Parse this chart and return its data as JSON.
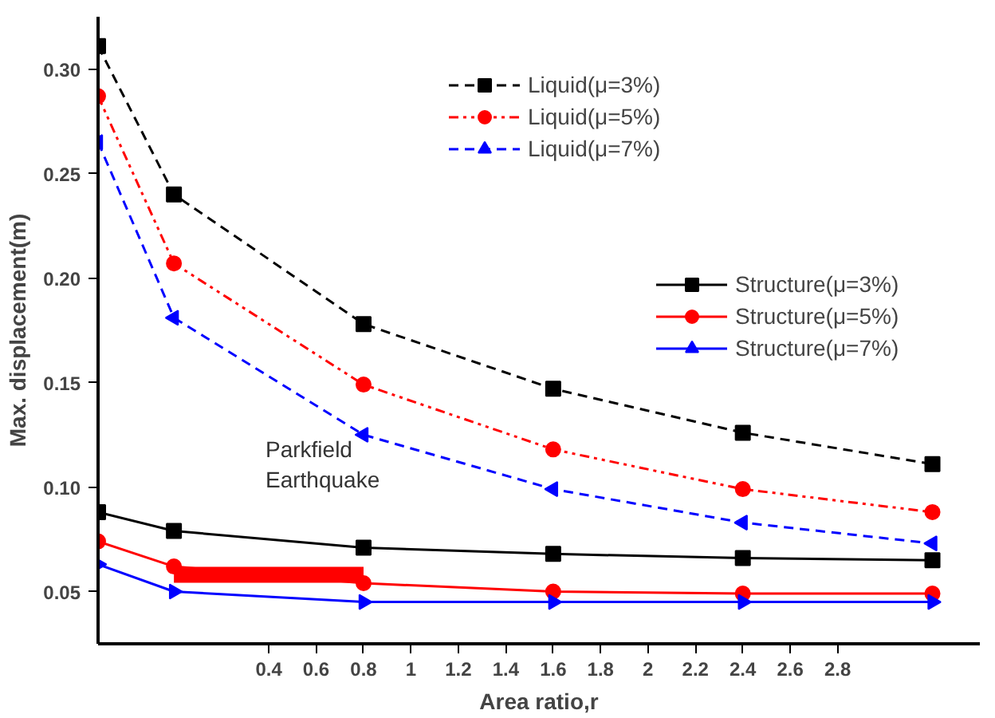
{
  "chart_data": {
    "type": "line",
    "xlabel": "Area ratio,r",
    "ylabel": "Max. displacement(m)",
    "xlim": [
      -0.32,
      3.4
    ],
    "ylim": [
      0.025,
      0.325
    ],
    "xticks": [
      0.4,
      0.6,
      0.8,
      1.0,
      1.2,
      1.4,
      1.6,
      1.8,
      2.0,
      2.2,
      2.4,
      2.6,
      2.8
    ],
    "yticks": [
      {
        "value": 0.05,
        "label": "0.05"
      },
      {
        "value": 0.1,
        "label": "0.10"
      },
      {
        "value": 0.15,
        "label": "0.15"
      },
      {
        "value": 0.2,
        "label": "0.20"
      },
      {
        "value": 0.25,
        "label": "0.25"
      },
      {
        "value": 0.3,
        "label": "0.30"
      }
    ],
    "grid": false,
    "legend": "top right",
    "annotations": [
      "Parkfield\nEarthquake"
    ],
    "x": [
      -0.32,
      0,
      0.8,
      1.6,
      2.4,
      3.2
    ],
    "series": [
      {
        "name": "Liquid(μ=3%)",
        "color": "#000000",
        "line_style": "dashed",
        "marker": "square",
        "values": [
          0.311,
          0.24,
          0.178,
          0.147,
          0.126,
          0.111
        ]
      },
      {
        "name": "Liquid(μ=5%)",
        "color": "#ff0000",
        "line_style": "dotted",
        "marker": "circle",
        "values": [
          0.287,
          0.207,
          0.149,
          0.118,
          0.099,
          0.088
        ]
      },
      {
        "name": "Liquid(μ=7%)",
        "color": "#0000ff",
        "line_style": "dashed",
        "marker": "triangle",
        "values": [
          0.265,
          0.181,
          0.125,
          0.099,
          0.083,
          0.073
        ]
      },
      {
        "name": "Structure(μ=3%)",
        "color": "#000000",
        "line_style": "solid",
        "marker": "square",
        "values": [
          0.088,
          0.079,
          0.071,
          0.068,
          0.066,
          0.065
        ]
      },
      {
        "name": "Structure(μ=5%)",
        "color": "#ff0000",
        "line_style": "solid",
        "marker": "circle",
        "values": [
          0.074,
          0.062,
          0.054,
          0.05,
          0.049,
          0.049
        ]
      },
      {
        "name": "Structure(μ=7%)",
        "color": "#0000ff",
        "line_style": "solid",
        "marker": "triangle",
        "values": [
          0.063,
          0.05,
          0.045,
          0.045,
          0.045,
          0.045
        ]
      },
      {
        "color": "#ff0000",
        "line_style": "solid",
        "marker": "none",
        "x": [
          0,
          0.8
        ],
        "values": [
          0.058,
          0.058
        ]
      }
    ]
  }
}
